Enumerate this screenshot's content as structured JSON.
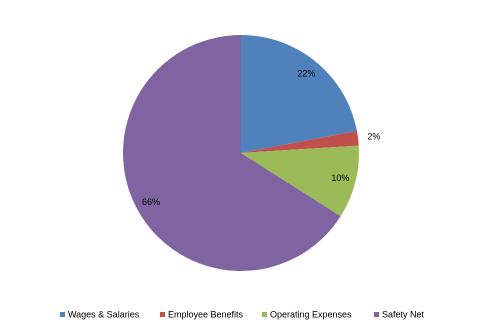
{
  "chart_data": {
    "type": "pie",
    "categories": [
      "Wages & Salaries",
      "Employee Benefits",
      "Operating Expenses",
      "Safety Net"
    ],
    "values": [
      22,
      2,
      10,
      66
    ],
    "value_labels": [
      "22%",
      "2%",
      "10%",
      "66%"
    ],
    "colors": [
      "#4f81bd",
      "#c0504d",
      "#9bbb59",
      "#8064a2"
    ],
    "legend": "bottom"
  }
}
